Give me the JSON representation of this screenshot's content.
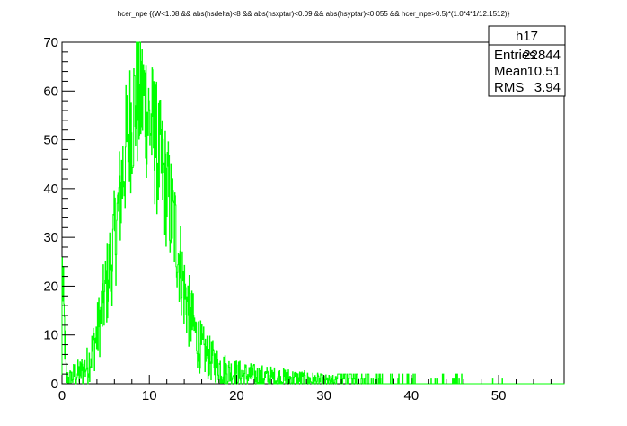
{
  "chart_data": {
    "type": "histogram",
    "title": "hcer_npe {(W<1.08 && abs(hsdelta)<8 && abs(hsxptar)<0.09 && abs(hsyptar)<0.055 && hcer_npe>0.5)*(1.0*4*1/12.1512)}",
    "xlim": [
      0,
      57.5
    ],
    "ylim": [
      0,
      70
    ],
    "x_ticks": [
      0,
      10,
      20,
      30,
      40,
      50
    ],
    "y_ticks": [
      0,
      10,
      20,
      30,
      40,
      50,
      60,
      70
    ],
    "x_tick_labels": [
      "0",
      "10",
      "20",
      "30",
      "40",
      "50"
    ],
    "y_tick_labels": [
      "0",
      "10",
      "20",
      "30",
      "40",
      "50",
      "60",
      "70"
    ],
    "line_color": "#00ff00",
    "series": [
      {
        "profile_x": [
          0,
          0.5,
          1.0,
          1.5,
          2.0,
          2.5,
          3.0,
          3.5,
          4.0,
          4.5,
          5.0,
          5.5,
          6.0,
          6.5,
          7.0,
          7.5,
          8.0,
          8.5,
          9.0,
          9.5,
          10.0,
          10.5,
          11.0,
          11.5,
          12.0,
          12.5,
          13.0,
          13.5,
          14.0,
          14.5,
          15.0,
          15.5,
          16.0,
          17.0,
          18.0,
          19.0,
          20.0,
          22.0,
          24.0,
          26.0,
          28.0,
          30.0,
          33.0,
          36.0,
          40.0,
          45.0,
          50.0,
          57.5
        ],
        "profile_y": [
          24,
          1,
          1,
          2,
          2,
          3,
          4,
          7,
          10,
          14,
          19,
          24,
          29,
          36,
          44,
          50,
          55,
          58,
          59,
          58,
          54,
          51,
          47,
          43,
          40,
          35,
          31,
          25,
          19,
          15,
          12,
          9,
          7,
          5,
          3.5,
          2.5,
          2,
          1.5,
          1.2,
          1.0,
          0.7,
          0.4,
          0.2,
          0.1,
          0.05,
          0.02,
          0.01,
          0
        ],
        "noise_amplitude": 4
      }
    ]
  },
  "stats": {
    "title": "h17",
    "rows": [
      {
        "label": "Entries",
        "value": "22844"
      },
      {
        "label": "Mean",
        "value": "10.51"
      },
      {
        "label": "RMS",
        "value": "3.94"
      }
    ]
  }
}
